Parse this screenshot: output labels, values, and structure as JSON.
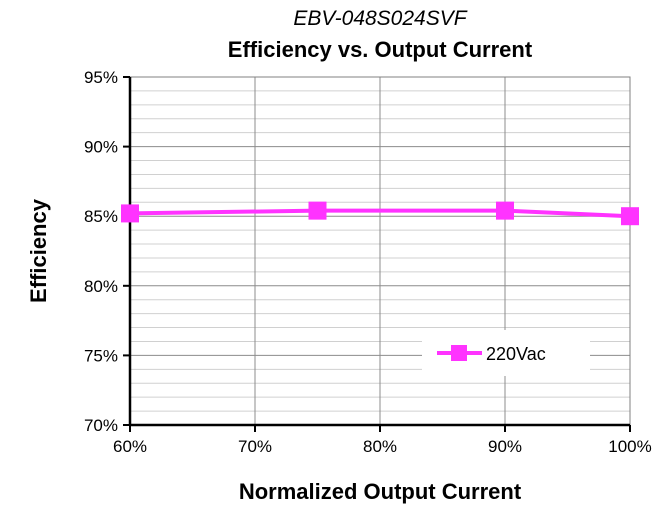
{
  "chart_data": {
    "type": "line",
    "subtitle": "EBV-048S024SVF",
    "title": "Efficiency vs. Output Current",
    "xlabel": "Normalized Output Current",
    "ylabel": "Efficiency",
    "x": [
      0.6,
      0.75,
      0.9,
      1.0
    ],
    "xlim": [
      0.6,
      1.0
    ],
    "ylim": [
      0.7,
      0.95
    ],
    "x_ticks": [
      0.6,
      0.7,
      0.8,
      0.9,
      1.0
    ],
    "x_tick_labels": [
      "60%",
      "70%",
      "80%",
      "90%",
      "100%"
    ],
    "y_ticks": [
      0.7,
      0.75,
      0.8,
      0.85,
      0.9,
      0.95
    ],
    "y_tick_labels": [
      "70%",
      "75%",
      "80%",
      "85%",
      "90%",
      "95%"
    ],
    "y_minor_step": 0.01,
    "grid": true,
    "legend_position": "lower-right",
    "series": [
      {
        "name": "220Vac",
        "values": [
          0.852,
          0.854,
          0.854,
          0.85
        ],
        "color": "#ff33ff",
        "marker": "square"
      }
    ]
  }
}
